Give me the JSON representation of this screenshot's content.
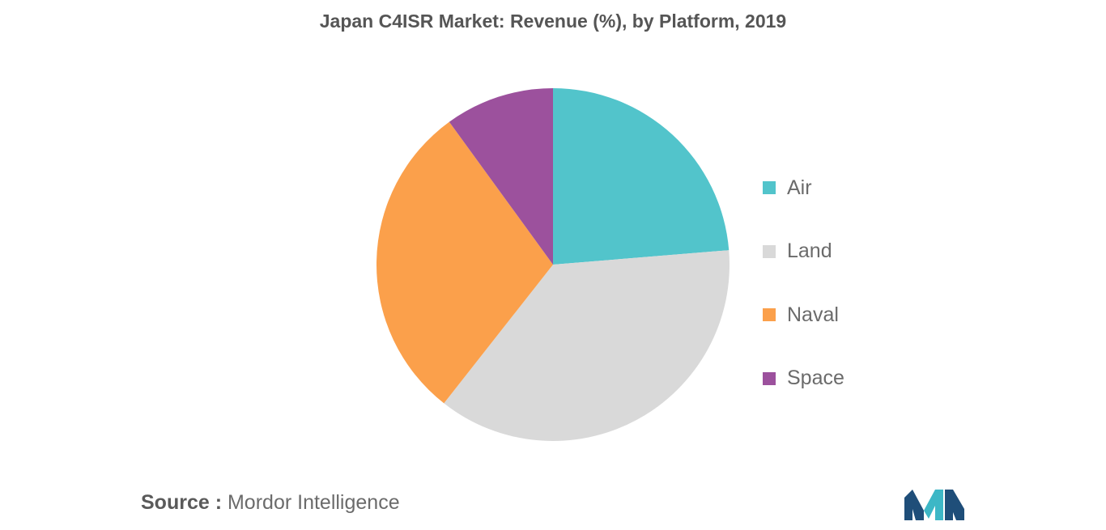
{
  "chart_data": {
    "type": "pie",
    "title": "Japan C4ISR Market: Revenue (%), by Platform, 2019",
    "slices": [
      {
        "label": "Air",
        "value": 23.7,
        "color": "#52C4CB"
      },
      {
        "label": "Land",
        "value": 36.9,
        "color": "#D9D9D9"
      },
      {
        "label": "Naval",
        "value": 29.4,
        "color": "#FBA04B"
      },
      {
        "label": "Space",
        "value": 10.0,
        "color": "#9C519D"
      }
    ],
    "legend_position": "right"
  },
  "source": {
    "prefix": "Source :",
    "name": "Mordor Intelligence"
  },
  "logo": {
    "colors": [
      "#1F4E79",
      "#3DB7C6"
    ]
  }
}
